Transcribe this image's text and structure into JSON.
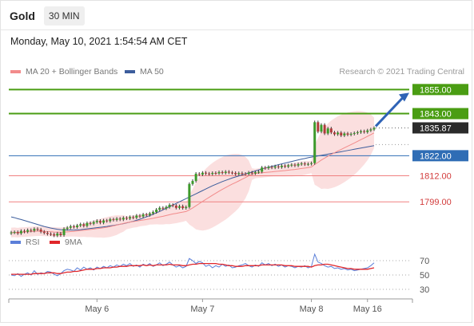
{
  "header": {
    "symbol": "Gold",
    "timeframe": "30 MIN"
  },
  "timestamp": "Monday, May 10, 2021 1:54:54 AM CET",
  "legend": {
    "bollinger": {
      "label": "MA 20 + Bollinger Bands",
      "color": "#f28b8b"
    },
    "ma50": {
      "label": "MA 50",
      "color": "#3c5d9c"
    }
  },
  "credit": "Research © 2021 Trading Central",
  "rsi_legend": {
    "rsi": {
      "label": "RSI",
      "color": "#5b7fd9"
    },
    "ma9": {
      "label": "9MA",
      "color": "#e0262a"
    }
  },
  "chart_data": {
    "type": "candlestick",
    "price_axis": {
      "min": 1780.4,
      "max": 1860.7
    },
    "x_labels": [
      "May 6",
      "May 7",
      "May 8",
      "May 16"
    ],
    "levels": [
      {
        "value": 1855.0,
        "label": "1855.00",
        "kind": "resistance"
      },
      {
        "value": 1843.0,
        "label": "1843.00",
        "kind": "resistance"
      },
      {
        "value": 1822.0,
        "label": "1822.00",
        "kind": "pivot"
      },
      {
        "value": 1812.0,
        "label": "1812.00",
        "kind": "support"
      },
      {
        "value": 1799.0,
        "label": "1799.00",
        "kind": "support"
      }
    ],
    "last_price": {
      "value": 1835.87,
      "label": "1835.87"
    },
    "closes": [
      1783.7,
      1783.9,
      1783.3,
      1784.5,
      1784.1,
      1784.9,
      1784.6,
      1785.5,
      1785.2,
      1784.1,
      1783.5,
      1783.0,
      1782.8,
      1782.2,
      1783.2,
      1782.4,
      1785.5,
      1786.1,
      1786.8,
      1786.4,
      1787.2,
      1787.8,
      1787.0,
      1788.4,
      1788.1,
      1788.9,
      1789.5,
      1788.6,
      1789.7,
      1789.4,
      1790.3,
      1790.0,
      1790.6,
      1790.2,
      1791.0,
      1790.7,
      1791.4,
      1791.1,
      1792.1,
      1791.7,
      1792.7,
      1792.4,
      1793.2,
      1793.9,
      1795.1,
      1796.0,
      1795.7,
      1796.4,
      1797.5,
      1797.1,
      1796.0,
      1796.8,
      1795.9,
      1796.4,
      1807.9,
      1809.4,
      1813.0,
      1812.6,
      1813.5,
      1813.1,
      1812.9,
      1813.4,
      1813.2,
      1813.8,
      1813.4,
      1814.0,
      1813.6,
      1813.4,
      1812.8,
      1813.3,
      1813.0,
      1812.9,
      1813.6,
      1813.2,
      1813.8,
      1814.0,
      1816.1,
      1815.8,
      1816.4,
      1816.1,
      1816.7,
      1816.3,
      1817.0,
      1816.6,
      1817.2,
      1817.5,
      1817.1,
      1817.8,
      1818.1,
      1817.7,
      1817.9,
      1818.3,
      1838.7,
      1834.0,
      1837.4,
      1833.1,
      1835.6,
      1833.6,
      1832.7,
      1833.5,
      1832.1,
      1833.1,
      1832.5,
      1832.9,
      1833.3,
      1833.7,
      1834.2,
      1833.8,
      1834.6,
      1835.1,
      1835.87
    ],
    "ma50": [
      1791.5,
      1791.1,
      1790.6,
      1790.2,
      1789.7,
      1789.2,
      1788.7,
      1788.2,
      1787.7,
      1787.2,
      1786.7,
      1786.3,
      1785.9,
      1785.6,
      1785.3,
      1785.1,
      1785.0,
      1784.9,
      1784.9,
      1784.9,
      1785.0,
      1785.1,
      1785.3,
      1785.5,
      1785.7,
      1785.9,
      1786.1,
      1786.3,
      1786.5,
      1786.7,
      1787.0,
      1787.2,
      1787.5,
      1787.8,
      1788.1,
      1788.5,
      1788.9,
      1789.3,
      1789.8,
      1790.3,
      1790.9,
      1791.5,
      1792.1,
      1792.8,
      1793.5,
      1794.2,
      1795.0,
      1795.8,
      1796.6,
      1797.4,
      1798.2,
      1799.0,
      1799.8,
      1800.6,
      1801.4,
      1802.2,
      1803.0,
      1803.8,
      1804.6,
      1805.4,
      1806.2,
      1807.0,
      1807.7,
      1808.4,
      1809.1,
      1809.7,
      1810.3,
      1810.9,
      1811.4,
      1811.9,
      1812.4,
      1812.9,
      1813.4,
      1813.9,
      1814.4,
      1814.9,
      1815.4,
      1815.9,
      1816.3,
      1816.7,
      1817.1,
      1817.5,
      1817.9,
      1818.3,
      1818.7,
      1819.1,
      1819.5,
      1819.9,
      1820.3,
      1820.6,
      1821.0,
      1821.3,
      1821.6,
      1821.9,
      1822.2,
      1822.5,
      1822.8,
      1823.1,
      1823.4,
      1823.7,
      1824.0,
      1824.3,
      1824.6,
      1824.9,
      1825.2,
      1825.5,
      1825.8,
      1826.1,
      1826.4,
      1826.7,
      1827.0
    ],
    "rsi": {
      "levels": [
        70,
        50,
        30
      ],
      "rsi": [
        50,
        49,
        52,
        48,
        51,
        53,
        50,
        56,
        51,
        53,
        52,
        55,
        54,
        51,
        49,
        52,
        56,
        58,
        57,
        55,
        60,
        57,
        61,
        58,
        60,
        57,
        61,
        59,
        62,
        60,
        63,
        61,
        64,
        62,
        65,
        63,
        66,
        62,
        64,
        61,
        65,
        63,
        66,
        62,
        64,
        67,
        63,
        65,
        68,
        64,
        61,
        63,
        60,
        62,
        73,
        70,
        66,
        69,
        67,
        62,
        64,
        60,
        63,
        61,
        65,
        62,
        64,
        60,
        61,
        63,
        64,
        66,
        63,
        61,
        64,
        62,
        67,
        64,
        66,
        63,
        65,
        62,
        64,
        61,
        63,
        62,
        60,
        62,
        61,
        63,
        60,
        62,
        79,
        68,
        66,
        63,
        61,
        62,
        59,
        60,
        58,
        59,
        57,
        58,
        56,
        57,
        58,
        59,
        60,
        63,
        67
      ],
      "ma9": [
        51,
        51,
        51,
        51,
        51,
        51,
        51,
        52,
        52,
        52,
        52,
        53,
        53,
        53,
        52,
        52,
        53,
        54,
        54,
        55,
        55,
        56,
        57,
        58,
        58,
        58,
        59,
        59,
        60,
        60,
        60,
        61,
        61,
        62,
        62,
        62,
        63,
        63,
        63,
        63,
        64,
        63,
        64,
        63,
        64,
        64,
        64,
        64,
        65,
        64,
        64,
        64,
        63,
        63,
        64,
        65,
        65,
        66,
        66,
        66,
        66,
        66,
        66,
        65,
        65,
        64,
        63,
        63,
        62,
        62,
        62,
        63,
        63,
        63,
        63,
        63,
        64,
        64,
        64,
        64,
        64,
        64,
        64,
        63,
        63,
        63,
        62,
        62,
        62,
        62,
        62,
        61,
        63,
        64,
        64,
        65,
        65,
        64,
        63,
        62,
        61,
        60,
        59,
        59,
        58,
        58,
        58,
        58,
        58,
        59,
        60
      ]
    }
  }
}
